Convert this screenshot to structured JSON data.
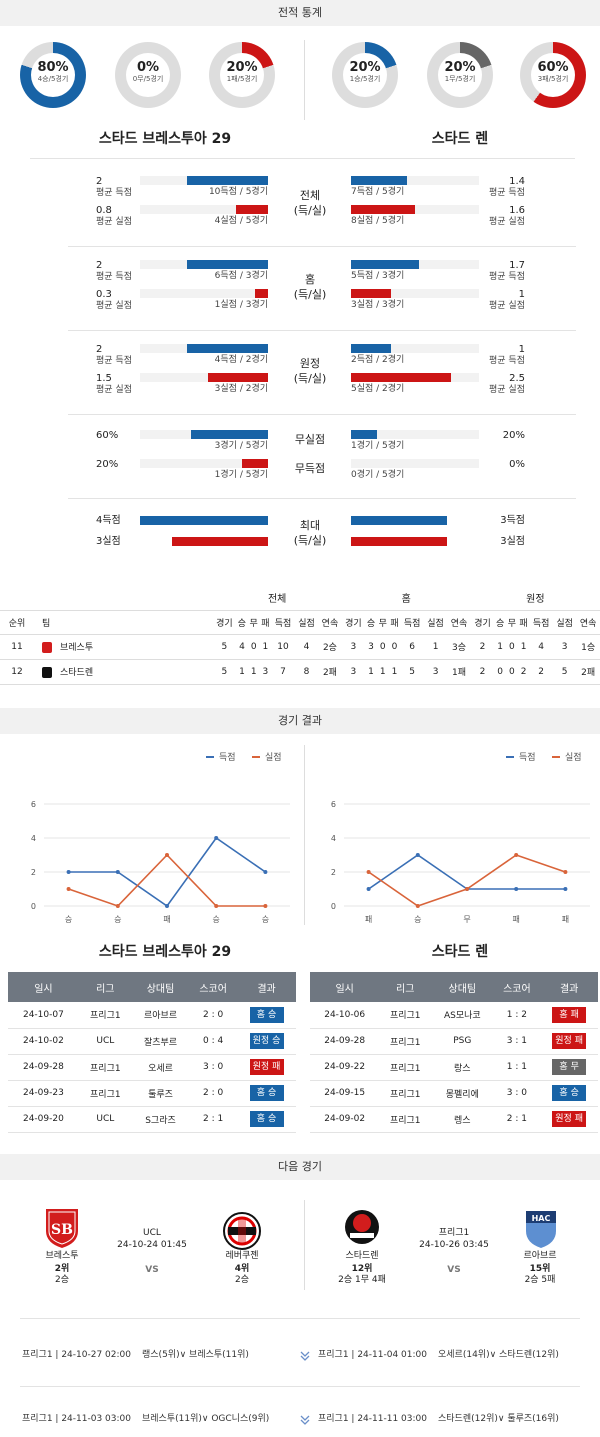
{
  "section_titles": {
    "stats": "전적 통계",
    "results": "경기 결과",
    "next": "다음 경기"
  },
  "colors": {
    "blue": "#1863a6",
    "red": "#cc1515",
    "gray": "#666666",
    "ring_bg": "#dddddd"
  },
  "donuts": [
    {
      "pct": "80%",
      "sub": "4승/5경기",
      "value": 0.8,
      "color": "#1863a6"
    },
    {
      "pct": "0%",
      "sub": "0무/5경기",
      "value": 0,
      "color": "#666666"
    },
    {
      "pct": "20%",
      "sub": "1패/5경기",
      "value": 0.2,
      "color": "#cc1515"
    },
    {
      "pct": "20%",
      "sub": "1승/5경기",
      "value": 0.2,
      "color": "#1863a6"
    },
    {
      "pct": "20%",
      "sub": "1무/5경기",
      "value": 0.2,
      "color": "#666666"
    },
    {
      "pct": "60%",
      "sub": "3패/5경기",
      "value": 0.6,
      "color": "#cc1515"
    }
  ],
  "team_left": "스타드 브레스투아 29",
  "team_right": "스타드 렌",
  "stat_blocks": [
    {
      "mid": [
        "전체",
        "(득/실)"
      ],
      "left": [
        {
          "val": "2",
          "label": "평균 득점",
          "cap": "10득점 / 5경기",
          "fill": 0.63,
          "color": "blue"
        },
        {
          "val": "0.8",
          "label": "평균 실점",
          "cap": "4실점 / 5경기",
          "fill": 0.25,
          "color": "red"
        }
      ],
      "right": [
        {
          "val": "1.4",
          "label": "평균 득점",
          "cap": "7득점 / 5경기",
          "fill": 0.44,
          "color": "blue"
        },
        {
          "val": "1.6",
          "label": "평균 실점",
          "cap": "8실점 / 5경기",
          "fill": 0.5,
          "color": "red"
        }
      ]
    },
    {
      "mid": [
        "홈",
        "(득/실)"
      ],
      "left": [
        {
          "val": "2",
          "label": "평균 득점",
          "cap": "6득점 / 3경기",
          "fill": 0.63,
          "color": "blue"
        },
        {
          "val": "0.3",
          "label": "평균 실점",
          "cap": "1실점 / 3경기",
          "fill": 0.1,
          "color": "red"
        }
      ],
      "right": [
        {
          "val": "1.7",
          "label": "평균 득점",
          "cap": "5득점 / 3경기",
          "fill": 0.53,
          "color": "blue"
        },
        {
          "val": "1",
          "label": "평균 실점",
          "cap": "3실점 / 3경기",
          "fill": 0.31,
          "color": "red"
        }
      ]
    },
    {
      "mid": [
        "원정",
        "(득/실)"
      ],
      "left": [
        {
          "val": "2",
          "label": "평균 득점",
          "cap": "4득점 / 2경기",
          "fill": 0.63,
          "color": "blue"
        },
        {
          "val": "1.5",
          "label": "평균 실점",
          "cap": "3실점 / 2경기",
          "fill": 0.47,
          "color": "red"
        }
      ],
      "right": [
        {
          "val": "1",
          "label": "평균 득점",
          "cap": "2득점 / 2경기",
          "fill": 0.31,
          "color": "blue"
        },
        {
          "val": "2.5",
          "label": "평균 실점",
          "cap": "5실점 / 2경기",
          "fill": 0.78,
          "color": "red"
        }
      ]
    }
  ],
  "rate_block": {
    "rows": [
      {
        "mid": "무실점",
        "left_val": "60%",
        "left_cap": "3경기 / 5경기",
        "left_fill": 0.6,
        "left_color": "blue",
        "right_val": "20%",
        "right_cap": "1경기 / 5경기",
        "right_fill": 0.2,
        "right_color": "blue"
      },
      {
        "mid": "무득점",
        "left_val": "20%",
        "left_cap": "1경기 / 5경기",
        "left_fill": 0.2,
        "left_color": "red",
        "right_val": "0%",
        "right_cap": "0경기 / 5경기",
        "right_fill": 0,
        "right_color": "red"
      }
    ]
  },
  "max_block": {
    "mid": [
      "최대",
      "(득/실)"
    ],
    "left": [
      {
        "val": "4득점",
        "fill": 1.0,
        "color": "blue"
      },
      {
        "val": "3실점",
        "fill": 0.75,
        "color": "red"
      }
    ],
    "right": [
      {
        "val": "3득점",
        "fill": 0.75,
        "color": "blue"
      },
      {
        "val": "3실점",
        "fill": 0.75,
        "color": "red"
      }
    ]
  },
  "standings": {
    "groups": [
      "전체",
      "홈",
      "원정"
    ],
    "head": [
      "순위",
      "팀"
    ],
    "cols": [
      "경기",
      "승",
      "무",
      "패",
      "득점",
      "실점",
      "연속"
    ],
    "rows": [
      {
        "rank": "11",
        "team": "브레스투",
        "all": [
          "5",
          "4",
          "0",
          "1",
          "10",
          "4",
          "2승"
        ],
        "home": [
          "3",
          "3",
          "0",
          "0",
          "6",
          "1",
          "3승"
        ],
        "away": [
          "2",
          "1",
          "0",
          "1",
          "4",
          "3",
          "1승"
        ]
      },
      {
        "rank": "12",
        "team": "스타드렌",
        "all": [
          "5",
          "1",
          "1",
          "3",
          "7",
          "8",
          "2패"
        ],
        "home": [
          "3",
          "1",
          "1",
          "1",
          "5",
          "3",
          "1패"
        ],
        "away": [
          "2",
          "0",
          "0",
          "2",
          "2",
          "5",
          "2패"
        ]
      }
    ]
  },
  "legend": {
    "scored": "득점",
    "conceded": "실점"
  },
  "chart_data": [
    {
      "type": "line",
      "categories": [
        "승",
        "승",
        "패",
        "승",
        "승"
      ],
      "series": [
        {
          "name": "득점",
          "values": [
            2,
            2,
            0,
            4,
            2
          ],
          "color": "#3a6fb5"
        },
        {
          "name": "실점",
          "values": [
            1,
            0,
            3,
            0,
            0
          ],
          "color": "#d9643a"
        }
      ],
      "ylim": [
        0,
        6
      ],
      "yticks": [
        "0",
        "2",
        "4",
        "6"
      ],
      "grid": true,
      "legend": "top"
    },
    {
      "type": "line",
      "categories": [
        "패",
        "승",
        "무",
        "패",
        "패"
      ],
      "series": [
        {
          "name": "득점",
          "values": [
            1,
            3,
            1,
            1,
            1
          ],
          "color": "#3a6fb5"
        },
        {
          "name": "실점",
          "values": [
            2,
            0,
            1,
            3,
            2
          ],
          "color": "#d9643a"
        }
      ],
      "ylim": [
        0,
        6
      ],
      "yticks": [
        "0",
        "2",
        "4",
        "6"
      ],
      "grid": true,
      "legend": "top"
    }
  ],
  "results_head": [
    "일시",
    "리그",
    "상대팀",
    "스코어",
    "결과"
  ],
  "results_left": [
    [
      "24-10-07",
      "프리그1",
      "르아브르",
      "2 : 0",
      "홈 승",
      "blue"
    ],
    [
      "24-10-02",
      "UCL",
      "잘츠부르",
      "0 : 4",
      "원정 승",
      "blue"
    ],
    [
      "24-09-28",
      "프리그1",
      "오세르",
      "3 : 0",
      "원정 패",
      "red"
    ],
    [
      "24-09-23",
      "프리그1",
      "툴루즈",
      "2 : 0",
      "홈 승",
      "blue"
    ],
    [
      "24-09-20",
      "UCL",
      "S그라즈",
      "2 : 1",
      "홈 승",
      "blue"
    ]
  ],
  "results_right": [
    [
      "24-10-06",
      "프리그1",
      "AS모나코",
      "1 : 2",
      "홈 패",
      "red"
    ],
    [
      "24-09-28",
      "프리그1",
      "PSG",
      "3 : 1",
      "원정 패",
      "red"
    ],
    [
      "24-09-22",
      "프리그1",
      "랑스",
      "1 : 1",
      "홈 무",
      "gray"
    ],
    [
      "24-09-15",
      "프리그1",
      "몽펠리에",
      "3 : 0",
      "홈 승",
      "blue"
    ],
    [
      "24-09-02",
      "프리그1",
      "렝스",
      "2 : 1",
      "원정 패",
      "red"
    ]
  ],
  "next_left": {
    "league": "UCL",
    "datetime": "24-10-24 01:45",
    "vs": "VS",
    "home": {
      "name": "브레스투",
      "rank": "2위",
      "form": "2승",
      "crest": "SB"
    },
    "away": {
      "name": "레버쿠젠",
      "rank": "4위",
      "form": "2승"
    }
  },
  "next_right": {
    "league": "프리그1",
    "datetime": "24-10-26 03:45",
    "vs": "VS",
    "home": {
      "name": "스타드렌",
      "rank": "12위",
      "form": "2승 1무 4패"
    },
    "away": {
      "name": "르아브르",
      "rank": "15위",
      "form": "2승 5패",
      "crest": "HAC"
    }
  },
  "schedule": [
    {
      "left": "프리그1 | 24-10-27 02:00",
      "mid": "랭스(5위)∨ 브레스투(11위)",
      "right_a": "프리그1 | 24-11-04 01:00",
      "right_b": "오세르(14위)∨ 스타드렌(12위)"
    },
    {
      "left": "프리그1 | 24-11-03 03:00",
      "mid": "브레스투(11위)∨ OGC니스(9위)",
      "right_a": "프리그1 | 24-11-11 03:00",
      "right_b": "스타드렌(12위)∨ 툴루즈(16위)"
    }
  ]
}
